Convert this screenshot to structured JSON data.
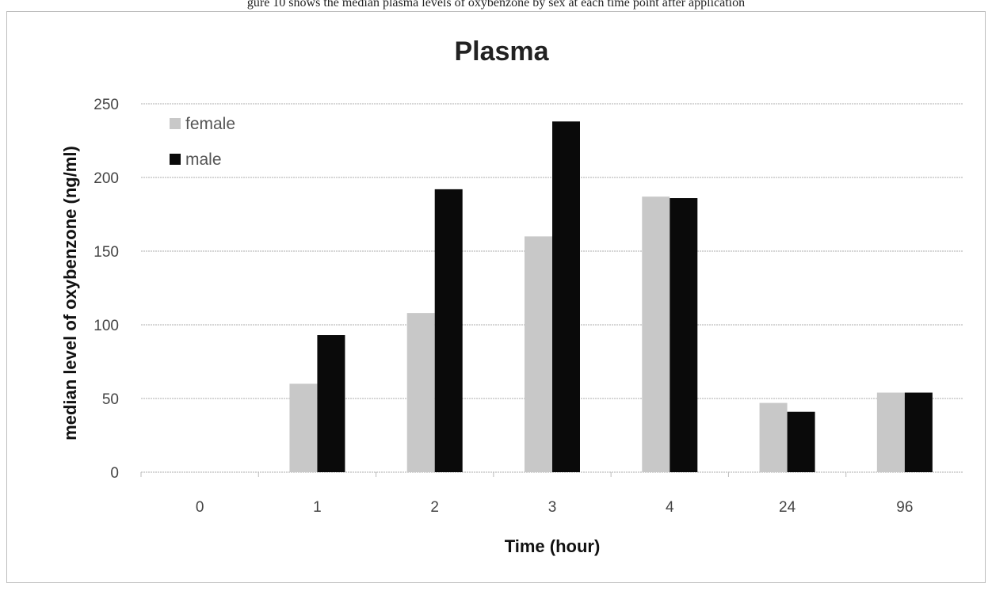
{
  "caption": "gure 10 shows the median plasma levels of oxybenzone by sex at each time point after application",
  "colors": {
    "female": "#c8c8c8",
    "male": "#0a0a0a",
    "grid": "#c9c9c9"
  },
  "chart_data": {
    "type": "bar",
    "title": "Plasma",
    "xlabel": "Time (hour)",
    "ylabel": "median level of oxybenzone (ng/ml)",
    "categories": [
      "0",
      "1",
      "2",
      "3",
      "4",
      "24",
      "96"
    ],
    "ylim": [
      0,
      250
    ],
    "yticks": [
      0,
      50,
      100,
      150,
      200,
      250
    ],
    "grid": true,
    "legend": "top-left",
    "series": [
      {
        "name": "female",
        "values": [
          0,
          60,
          108,
          160,
          187,
          47,
          54
        ]
      },
      {
        "name": "male",
        "values": [
          0,
          93,
          192,
          238,
          186,
          41,
          54
        ]
      }
    ]
  }
}
